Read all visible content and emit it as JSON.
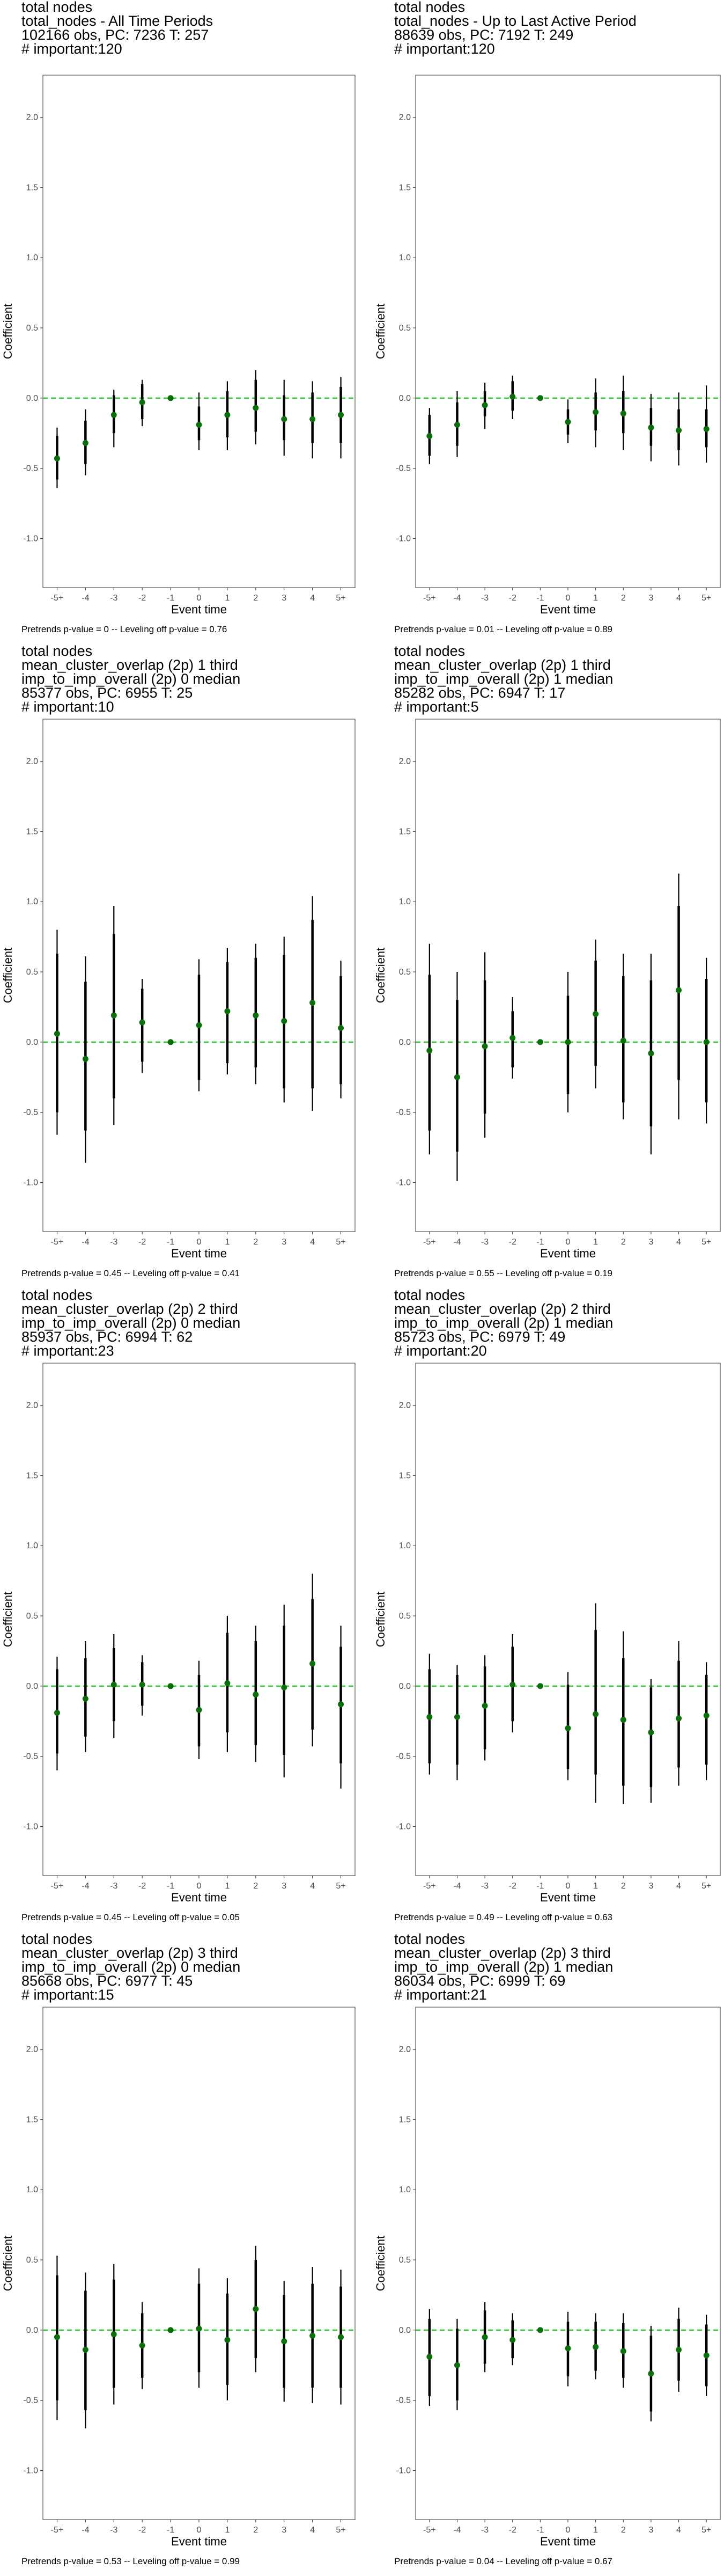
{
  "chart_data": [
    {
      "type": "scatter",
      "title_lines": [
        "total nodes",
        "total_nodes - All Time Periods",
        "102166 obs, PC: 7236 T: 257",
        "# important:120"
      ],
      "xlabel": "Event time",
      "ylabel": "Coefficient",
      "categories": [
        "-5+",
        "-4",
        "-3",
        "-2",
        "-1",
        "0",
        "1",
        "2",
        "3",
        "4",
        "5+"
      ],
      "y_ticks": [
        "-1.0",
        "-0.5",
        "0.0",
        "0.5",
        "1.0",
        "1.5",
        "2.0"
      ],
      "ylim": [
        -1.35,
        2.3
      ],
      "reference_line": 0,
      "estimates": [
        -0.43,
        -0.32,
        -0.12,
        -0.03,
        0.0,
        -0.19,
        -0.12,
        -0.07,
        -0.15,
        -0.15,
        -0.12
      ],
      "ci_outer": [
        [
          -0.64,
          -0.21
        ],
        [
          -0.55,
          -0.08
        ],
        [
          -0.35,
          0.06
        ],
        [
          -0.2,
          0.13
        ],
        [
          0.0,
          0.0
        ],
        [
          -0.37,
          0.04
        ],
        [
          -0.37,
          0.12
        ],
        [
          -0.33,
          0.2
        ],
        [
          -0.41,
          0.13
        ],
        [
          -0.43,
          0.12
        ],
        [
          -0.43,
          0.15
        ]
      ],
      "ci_inner": [
        [
          -0.58,
          -0.27
        ],
        [
          -0.47,
          -0.16
        ],
        [
          -0.25,
          0.02
        ],
        [
          -0.15,
          0.1
        ],
        [
          0.0,
          0.0
        ],
        [
          -0.3,
          -0.06
        ],
        [
          -0.28,
          0.05
        ],
        [
          -0.24,
          0.13
        ],
        [
          -0.3,
          0.02
        ],
        [
          -0.32,
          0.04
        ],
        [
          -0.32,
          0.08
        ]
      ],
      "footer": "Pretrends p-value = 0 -- Leveling off p-value = 0.76",
      "colors": {
        "point": "#0a6e0a",
        "reference_line": "#33cc33",
        "bar": "#000000"
      }
    },
    {
      "type": "scatter",
      "title_lines": [
        "total nodes",
        "total_nodes - Up to Last Active Period",
        "88639 obs, PC: 7192 T: 249",
        "# important:120"
      ],
      "xlabel": "Event time",
      "ylabel": "Coefficient",
      "categories": [
        "-5+",
        "-4",
        "-3",
        "-2",
        "-1",
        "0",
        "1",
        "2",
        "3",
        "4",
        "5+"
      ],
      "y_ticks": [
        "-1.0",
        "-0.5",
        "0.0",
        "0.5",
        "1.0",
        "1.5",
        "2.0"
      ],
      "ylim": [
        -1.35,
        2.3
      ],
      "reference_line": 0,
      "estimates": [
        -0.27,
        -0.19,
        -0.05,
        0.01,
        0.0,
        -0.17,
        -0.1,
        -0.11,
        -0.21,
        -0.23,
        -0.22
      ],
      "ci_outer": [
        [
          -0.47,
          -0.07
        ],
        [
          -0.42,
          0.05
        ],
        [
          -0.22,
          0.11
        ],
        [
          -0.15,
          0.16
        ],
        [
          0.0,
          0.0
        ],
        [
          -0.32,
          -0.01
        ],
        [
          -0.35,
          0.14
        ],
        [
          -0.37,
          0.16
        ],
        [
          -0.45,
          0.03
        ],
        [
          -0.48,
          0.04
        ],
        [
          -0.46,
          0.09
        ]
      ],
      "ci_inner": [
        [
          -0.41,
          -0.12
        ],
        [
          -0.34,
          -0.03
        ],
        [
          -0.13,
          0.05
        ],
        [
          -0.09,
          0.12
        ],
        [
          0.0,
          0.0
        ],
        [
          -0.26,
          -0.08
        ],
        [
          -0.23,
          0.04
        ],
        [
          -0.25,
          0.05
        ],
        [
          -0.34,
          -0.07
        ],
        [
          -0.37,
          -0.08
        ],
        [
          -0.35,
          -0.08
        ]
      ],
      "footer": "Pretrends p-value = 0.01 -- Leveling off p-value = 0.89",
      "colors": {
        "point": "#0a6e0a",
        "reference_line": "#33cc33",
        "bar": "#000000"
      }
    },
    {
      "type": "scatter",
      "title_lines": [
        "total nodes",
        "mean_cluster_overlap (2p) 1 third",
        "imp_to_imp_overall (2p) 0 median",
        "85377 obs, PC: 6955 T: 25",
        "# important:10"
      ],
      "xlabel": "Event time",
      "ylabel": "Coefficient",
      "categories": [
        "-5+",
        "-4",
        "-3",
        "-2",
        "-1",
        "0",
        "1",
        "2",
        "3",
        "4",
        "5+"
      ],
      "y_ticks": [
        "-1.0",
        "-0.5",
        "0.0",
        "0.5",
        "1.0",
        "1.5",
        "2.0"
      ],
      "ylim": [
        -1.35,
        2.3
      ],
      "reference_line": 0,
      "estimates": [
        0.06,
        -0.12,
        0.19,
        0.14,
        0.0,
        0.12,
        0.22,
        0.19,
        0.15,
        0.28,
        0.1
      ],
      "ci_outer": [
        [
          -0.66,
          0.8
        ],
        [
          -0.86,
          0.61
        ],
        [
          -0.59,
          0.97
        ],
        [
          -0.22,
          0.45
        ],
        [
          0.0,
          0.0
        ],
        [
          -0.35,
          0.59
        ],
        [
          -0.23,
          0.67
        ],
        [
          -0.3,
          0.7
        ],
        [
          -0.43,
          0.75
        ],
        [
          -0.49,
          1.04
        ],
        [
          -0.4,
          0.58
        ]
      ],
      "ci_inner": [
        [
          -0.5,
          0.63
        ],
        [
          -0.63,
          0.43
        ],
        [
          -0.4,
          0.77
        ],
        [
          -0.14,
          0.38
        ],
        [
          0.0,
          0.0
        ],
        [
          -0.27,
          0.48
        ],
        [
          -0.15,
          0.57
        ],
        [
          -0.18,
          0.6
        ],
        [
          -0.33,
          0.62
        ],
        [
          -0.33,
          0.87
        ],
        [
          -0.3,
          0.47
        ]
      ],
      "footer": "Pretrends p-value = 0.45 -- Leveling off p-value = 0.41",
      "colors": {
        "point": "#0a6e0a",
        "reference_line": "#33cc33",
        "bar": "#000000"
      }
    },
    {
      "type": "scatter",
      "title_lines": [
        "total nodes",
        "mean_cluster_overlap (2p) 1 third",
        "imp_to_imp_overall (2p) 1 median",
        "85282 obs, PC: 6947 T: 17",
        "# important:5"
      ],
      "xlabel": "Event time",
      "ylabel": "Coefficient",
      "categories": [
        "-5+",
        "-4",
        "-3",
        "-2",
        "-1",
        "0",
        "1",
        "2",
        "3",
        "4",
        "5+"
      ],
      "y_ticks": [
        "-1.0",
        "-0.5",
        "0.0",
        "0.5",
        "1.0",
        "1.5",
        "2.0"
      ],
      "ylim": [
        -1.35,
        2.3
      ],
      "reference_line": 0,
      "estimates": [
        -0.06,
        -0.25,
        -0.03,
        0.03,
        0.0,
        0.0,
        0.2,
        0.01,
        -0.08,
        0.37,
        0.0
      ],
      "ci_outer": [
        [
          -0.8,
          0.7
        ],
        [
          -0.99,
          0.5
        ],
        [
          -0.68,
          0.64
        ],
        [
          -0.26,
          0.32
        ],
        [
          0.0,
          0.0
        ],
        [
          -0.5,
          0.5
        ],
        [
          -0.33,
          0.73
        ],
        [
          -0.55,
          0.63
        ],
        [
          -0.8,
          0.63
        ],
        [
          -0.55,
          1.2
        ],
        [
          -0.58,
          0.6
        ]
      ],
      "ci_inner": [
        [
          -0.63,
          0.48
        ],
        [
          -0.78,
          0.3
        ],
        [
          -0.51,
          0.44
        ],
        [
          -0.18,
          0.22
        ],
        [
          0.0,
          0.0
        ],
        [
          -0.37,
          0.33
        ],
        [
          -0.17,
          0.58
        ],
        [
          -0.43,
          0.47
        ],
        [
          -0.6,
          0.44
        ],
        [
          -0.27,
          0.97
        ],
        [
          -0.43,
          0.45
        ]
      ],
      "footer": "Pretrends p-value = 0.55 -- Leveling off p-value = 0.19",
      "colors": {
        "point": "#0a6e0a",
        "reference_line": "#33cc33",
        "bar": "#000000"
      }
    },
    {
      "type": "scatter",
      "title_lines": [
        "total nodes",
        "mean_cluster_overlap (2p) 2 third",
        "imp_to_imp_overall (2p) 0 median",
        "85937 obs, PC: 6994 T: 62",
        "# important:23"
      ],
      "xlabel": "Event time",
      "ylabel": "Coefficient",
      "categories": [
        "-5+",
        "-4",
        "-3",
        "-2",
        "-1",
        "0",
        "1",
        "2",
        "3",
        "4",
        "5+"
      ],
      "y_ticks": [
        "-1.0",
        "-0.5",
        "0.0",
        "0.5",
        "1.0",
        "1.5",
        "2.0"
      ],
      "ylim": [
        -1.35,
        2.3
      ],
      "reference_line": 0,
      "estimates": [
        -0.19,
        -0.09,
        0.01,
        0.01,
        0.0,
        -0.17,
        0.02,
        -0.06,
        -0.01,
        0.16,
        -0.13
      ],
      "ci_outer": [
        [
          -0.6,
          0.21
        ],
        [
          -0.47,
          0.32
        ],
        [
          -0.37,
          0.37
        ],
        [
          -0.21,
          0.22
        ],
        [
          0.0,
          0.0
        ],
        [
          -0.52,
          0.18
        ],
        [
          -0.47,
          0.5
        ],
        [
          -0.54,
          0.43
        ],
        [
          -0.65,
          0.58
        ],
        [
          -0.43,
          0.8
        ],
        [
          -0.73,
          0.43
        ]
      ],
      "ci_inner": [
        [
          -0.48,
          0.12
        ],
        [
          -0.36,
          0.2
        ],
        [
          -0.25,
          0.27
        ],
        [
          -0.14,
          0.17
        ],
        [
          0.0,
          0.0
        ],
        [
          -0.43,
          0.08
        ],
        [
          -0.33,
          0.38
        ],
        [
          -0.42,
          0.32
        ],
        [
          -0.49,
          0.43
        ],
        [
          -0.31,
          0.62
        ],
        [
          -0.55,
          0.28
        ]
      ],
      "footer": "Pretrends p-value = 0.45 -- Leveling off p-value = 0.05",
      "colors": {
        "point": "#0a6e0a",
        "reference_line": "#33cc33",
        "bar": "#000000"
      }
    },
    {
      "type": "scatter",
      "title_lines": [
        "total nodes",
        "mean_cluster_overlap (2p) 2 third",
        "imp_to_imp_overall (2p) 1 median",
        "85723 obs, PC: 6979 T: 49",
        "# important:20"
      ],
      "xlabel": "Event time",
      "ylabel": "Coefficient",
      "categories": [
        "-5+",
        "-4",
        "-3",
        "-2",
        "-1",
        "0",
        "1",
        "2",
        "3",
        "4",
        "5+"
      ],
      "y_ticks": [
        "-1.0",
        "-0.5",
        "0.0",
        "0.5",
        "1.0",
        "1.5",
        "2.0"
      ],
      "ylim": [
        -1.35,
        2.3
      ],
      "reference_line": 0,
      "estimates": [
        -0.22,
        -0.22,
        -0.14,
        0.01,
        0.0,
        -0.3,
        -0.2,
        -0.24,
        -0.33,
        -0.23,
        -0.21
      ],
      "ci_outer": [
        [
          -0.63,
          0.23
        ],
        [
          -0.67,
          0.15
        ],
        [
          -0.53,
          0.22
        ],
        [
          -0.33,
          0.37
        ],
        [
          0.0,
          0.0
        ],
        [
          -0.67,
          0.1
        ],
        [
          -0.83,
          0.59
        ],
        [
          -0.84,
          0.39
        ],
        [
          -0.83,
          0.05
        ],
        [
          -0.71,
          0.32
        ],
        [
          -0.67,
          0.17
        ]
      ],
      "ci_inner": [
        [
          -0.55,
          0.12
        ],
        [
          -0.56,
          0.08
        ],
        [
          -0.45,
          0.14
        ],
        [
          -0.25,
          0.28
        ],
        [
          0.0,
          0.0
        ],
        [
          -0.59,
          0.01
        ],
        [
          -0.63,
          0.4
        ],
        [
          -0.71,
          0.2
        ],
        [
          -0.72,
          -0.01
        ],
        [
          -0.58,
          0.18
        ],
        [
          -0.56,
          0.08
        ]
      ],
      "footer": "Pretrends p-value = 0.49 -- Leveling off p-value = 0.63",
      "colors": {
        "point": "#0a6e0a",
        "reference_line": "#33cc33",
        "bar": "#000000"
      }
    },
    {
      "type": "scatter",
      "title_lines": [
        "total nodes",
        "mean_cluster_overlap (2p) 3 third",
        "imp_to_imp_overall (2p) 0 median",
        "85668 obs, PC: 6977 T: 45",
        "# important:15"
      ],
      "xlabel": "Event time",
      "ylabel": "Coefficient",
      "categories": [
        "-5+",
        "-4",
        "-3",
        "-2",
        "-1",
        "0",
        "1",
        "2",
        "3",
        "4",
        "5+"
      ],
      "y_ticks": [
        "-1.0",
        "-0.5",
        "0.0",
        "0.5",
        "1.0",
        "1.5",
        "2.0"
      ],
      "ylim": [
        -1.35,
        2.3
      ],
      "reference_line": 0,
      "estimates": [
        -0.05,
        -0.14,
        -0.03,
        -0.11,
        0.0,
        0.01,
        -0.07,
        0.15,
        -0.08,
        -0.04,
        -0.05
      ],
      "ci_outer": [
        [
          -0.64,
          0.53
        ],
        [
          -0.7,
          0.41
        ],
        [
          -0.53,
          0.47
        ],
        [
          -0.42,
          0.2
        ],
        [
          0.0,
          0.0
        ],
        [
          -0.41,
          0.44
        ],
        [
          -0.5,
          0.37
        ],
        [
          -0.3,
          0.6
        ],
        [
          -0.51,
          0.35
        ],
        [
          -0.52,
          0.45
        ],
        [
          -0.53,
          0.43
        ]
      ],
      "ci_inner": [
        [
          -0.5,
          0.39
        ],
        [
          -0.57,
          0.28
        ],
        [
          -0.41,
          0.36
        ],
        [
          -0.34,
          0.12
        ],
        [
          0.0,
          0.0
        ],
        [
          -0.3,
          0.33
        ],
        [
          -0.39,
          0.26
        ],
        [
          -0.2,
          0.5
        ],
        [
          -0.41,
          0.25
        ],
        [
          -0.41,
          0.33
        ],
        [
          -0.41,
          0.31
        ]
      ],
      "footer": "Pretrends p-value = 0.53 -- Leveling off p-value = 0.99",
      "colors": {
        "point": "#0a6e0a",
        "reference_line": "#33cc33",
        "bar": "#000000"
      }
    },
    {
      "type": "scatter",
      "title_lines": [
        "total nodes",
        "mean_cluster_overlap (2p) 3 third",
        "imp_to_imp_overall (2p) 1 median",
        "86034 obs, PC: 6999 T: 69",
        "# important:21"
      ],
      "xlabel": "Event time",
      "ylabel": "Coefficient",
      "categories": [
        "-5+",
        "-4",
        "-3",
        "-2",
        "-1",
        "0",
        "1",
        "2",
        "3",
        "4",
        "5+"
      ],
      "y_ticks": [
        "-1.0",
        "-0.5",
        "0.0",
        "0.5",
        "1.0",
        "1.5",
        "2.0"
      ],
      "ylim": [
        -1.35,
        2.3
      ],
      "reference_line": 0,
      "estimates": [
        -0.19,
        -0.25,
        -0.05,
        -0.07,
        0.0,
        -0.13,
        -0.12,
        -0.15,
        -0.31,
        -0.14,
        -0.18
      ],
      "ci_outer": [
        [
          -0.54,
          0.15
        ],
        [
          -0.57,
          0.08
        ],
        [
          -0.3,
          0.2
        ],
        [
          -0.25,
          0.12
        ],
        [
          0.0,
          0.0
        ],
        [
          -0.4,
          0.13
        ],
        [
          -0.35,
          0.12
        ],
        [
          -0.41,
          0.12
        ],
        [
          -0.65,
          0.03
        ],
        [
          -0.44,
          0.16
        ],
        [
          -0.47,
          0.11
        ]
      ],
      "ci_inner": [
        [
          -0.47,
          0.08
        ],
        [
          -0.5,
          0.01
        ],
        [
          -0.24,
          0.14
        ],
        [
          -0.2,
          0.07
        ],
        [
          0.0,
          0.0
        ],
        [
          -0.33,
          0.06
        ],
        [
          -0.29,
          0.06
        ],
        [
          -0.34,
          0.05
        ],
        [
          -0.58,
          -0.04
        ],
        [
          -0.36,
          0.08
        ],
        [
          -0.4,
          0.04
        ]
      ],
      "footer": "Pretrends p-value = 0.04 -- Leveling off p-value = 0.67",
      "colors": {
        "point": "#0a6e0a",
        "reference_line": "#33cc33",
        "bar": "#000000"
      }
    }
  ]
}
